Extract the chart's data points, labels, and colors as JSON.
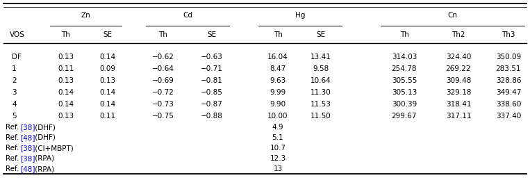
{
  "figsize": [
    7.63,
    2.56
  ],
  "dpi": 100,
  "col0_header": "VOS",
  "group_headers": [
    "Zn",
    "Cd",
    "Hg",
    "Cn"
  ],
  "sub_headers": [
    "Th",
    "SE",
    "Th",
    "SE",
    "Th",
    "SE",
    "Th",
    "Th2",
    "Th3"
  ],
  "data_rows": [
    [
      "DF",
      "0.13",
      "0.14",
      "−0.62",
      "−0.63",
      "16.04",
      "13.41",
      "314.03",
      "324.40",
      "350.09"
    ],
    [
      "1",
      "0.11",
      "0.09",
      "−0.64",
      "−0.71",
      "8.47",
      "9.58",
      "254.78",
      "269.22",
      "283.51"
    ],
    [
      "2",
      "0.13",
      "0.13",
      "−0.69",
      "−0.81",
      "9.63",
      "10.64",
      "305.55",
      "309.48",
      "328.86"
    ],
    [
      "3",
      "0.14",
      "0.14",
      "−0.72",
      "−0.85",
      "9.99",
      "11.30",
      "305.13",
      "329.18",
      "349.47"
    ],
    [
      "4",
      "0.14",
      "0.14",
      "−0.73",
      "−0.87",
      "9.90",
      "11.53",
      "300.39",
      "318.41",
      "338.60"
    ],
    [
      "5",
      "0.13",
      "0.11",
      "−0.75",
      "−0.88",
      "10.00",
      "11.50",
      "299.67",
      "317.11",
      "337.40"
    ]
  ],
  "ref_rows": [
    [
      "Ref. ",
      "38",
      " (DHF)",
      "4.9"
    ],
    [
      "Ref. ",
      "48",
      " (DHF)",
      "5.1"
    ],
    [
      "Ref. ",
      "38",
      " (CI+MBPT)",
      "10.7"
    ],
    [
      "Ref. ",
      "38",
      " (RPA)",
      "12.3"
    ],
    [
      "Ref. ",
      "48",
      " (RPA)",
      "13"
    ]
  ],
  "link_color": "#0000CC",
  "text_color": "#000000",
  "bg_color": "#ffffff",
  "fontsize": 7.5
}
